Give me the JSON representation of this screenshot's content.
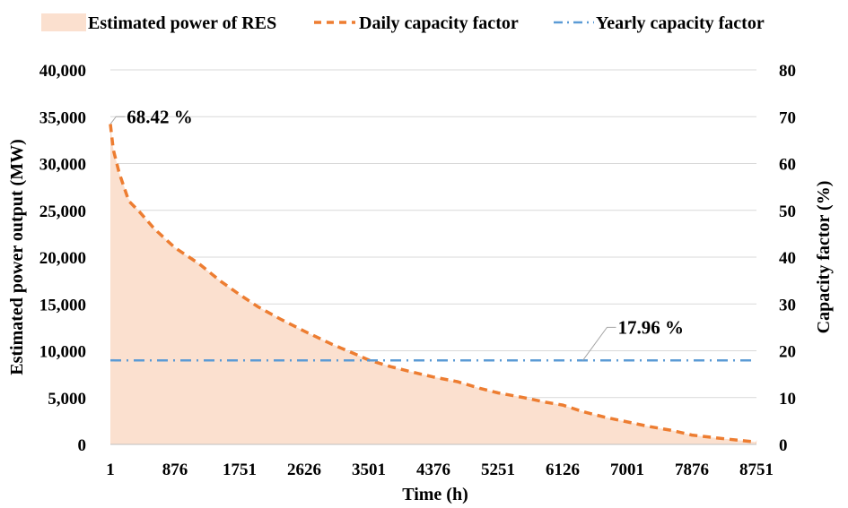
{
  "chart_data": {
    "type": "area",
    "xlabel": "Time (h)",
    "ylabel_left": "Estimated power output (MW)",
    "ylabel_right": "Capacity factor (%)",
    "x_ticks": [
      "1",
      "876",
      "1751",
      "2626",
      "3501",
      "4376",
      "5251",
      "6126",
      "7001",
      "7876",
      "8751"
    ],
    "x_range": [
      1,
      8751
    ],
    "y_left_range": [
      0,
      40000
    ],
    "y_left_ticks": [
      "0",
      "5,000",
      "10,000",
      "15,000",
      "20,000",
      "25,000",
      "30,000",
      "35,000",
      "40,000"
    ],
    "y_right_range": [
      0,
      80
    ],
    "y_right_ticks": [
      "0",
      "10",
      "20",
      "30",
      "40",
      "50",
      "60",
      "70",
      "80"
    ],
    "legend_position": "top",
    "grid": "horizontal",
    "series": [
      {
        "name": "Estimated power of RES",
        "kind": "area",
        "axis": "left",
        "color": "#FBE0CF",
        "x": [
          1,
          40,
          120,
          250,
          400,
          600,
          876,
          1200,
          1500,
          1751,
          2000,
          2300,
          2626,
          3000,
          3300,
          3501,
          3800,
          4100,
          4376,
          4700,
          5000,
          5251,
          5600,
          5900,
          6126,
          6400,
          6700,
          7001,
          7300,
          7600,
          7876,
          8200,
          8500,
          8751
        ],
        "y": [
          34210,
          31600,
          29000,
          26200,
          24800,
          23000,
          21000,
          19300,
          17400,
          16000,
          14700,
          13400,
          12100,
          10700,
          9700,
          9000,
          8300,
          7700,
          7200,
          6700,
          6000,
          5500,
          5000,
          4500,
          4200,
          3500,
          2900,
          2400,
          1900,
          1500,
          1000,
          700,
          450,
          250
        ]
      },
      {
        "name": "Daily capacity factor",
        "kind": "line",
        "axis": "right",
        "color": "#ED7D31",
        "x": [
          1,
          40,
          120,
          250,
          400,
          600,
          876,
          1200,
          1500,
          1751,
          2000,
          2300,
          2626,
          3000,
          3300,
          3501,
          3800,
          4100,
          4376,
          4700,
          5000,
          5251,
          5600,
          5900,
          6126,
          6400,
          6700,
          7001,
          7300,
          7600,
          7876,
          8200,
          8500,
          8751
        ],
        "y": [
          68.42,
          63.0,
          58.0,
          52.0,
          49.6,
          46.0,
          42.0,
          38.6,
          34.8,
          32.0,
          29.4,
          26.8,
          24.2,
          21.4,
          19.4,
          18.0,
          16.6,
          15.4,
          14.4,
          13.4,
          12.0,
          11.0,
          10.0,
          9.0,
          8.4,
          7.0,
          5.8,
          4.8,
          3.8,
          3.0,
          2.0,
          1.4,
          0.9,
          0.5
        ]
      },
      {
        "name": "Yearly capacity factor",
        "kind": "line",
        "axis": "right",
        "color": "#5B9BD5",
        "x": [
          1,
          8751
        ],
        "y": [
          17.96,
          17.96
        ]
      }
    ],
    "annotations": [
      {
        "text": "68.42 %",
        "x": 1,
        "y": 68.42,
        "axis": "right",
        "label_x": 150,
        "label_y": 70
      },
      {
        "text": "17.96 %",
        "x": 6400,
        "y": 17.96,
        "axis": "right",
        "label_x": 6800,
        "label_y": 25
      }
    ]
  }
}
